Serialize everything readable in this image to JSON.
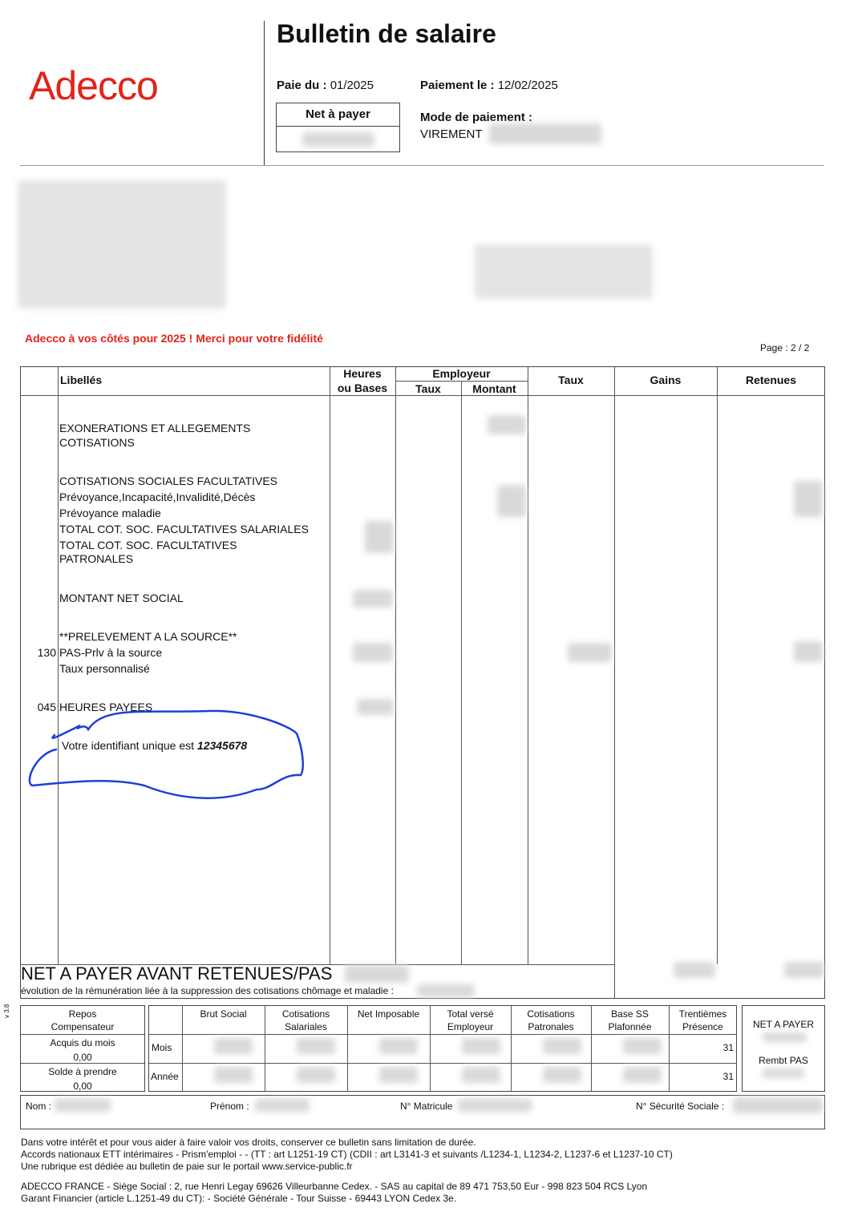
{
  "header": {
    "logo": "Adecco",
    "title": "Bulletin de salaire",
    "paie_du_label": "Paie du :",
    "paie_du": "01/2025",
    "paiement_le_label": "Paiement le :",
    "paiement_le": "12/02/2025",
    "net_a_payer_label": "Net à payer",
    "mode_paiement_label": "Mode de paiement :",
    "mode_paiement": "VIREMENT"
  },
  "promo": "Adecco à vos côtés pour 2025 ! Merci pour votre fidélité",
  "page": "Page : 2 / 2",
  "table": {
    "headers": {
      "libelles": "Libellés",
      "heures": "Heures",
      "bases": "ou Bases",
      "employeur": "Employeur",
      "taux_emp": "Taux",
      "montant": "Montant",
      "taux": "Taux",
      "gains": "Gains",
      "retenues": "Retenues"
    },
    "rows": [
      {
        "code": "",
        "label": "EXONERATIONS ET ALLEGEMENTS"
      },
      {
        "code": "",
        "label": "COTISATIONS"
      },
      {
        "code": "",
        "label": "COTISATIONS SOCIALES FACULTATIVES"
      },
      {
        "code": "",
        "label": "Prévoyance,Incapacité,Invalidité,Décès"
      },
      {
        "code": "",
        "label": "Prévoyance maladie"
      },
      {
        "code": "",
        "label": "TOTAL COT. SOC. FACULTATIVES SALARIALES"
      },
      {
        "code": "",
        "label": "TOTAL COT. SOC. FACULTATIVES"
      },
      {
        "code": "",
        "label": "PATRONALES"
      },
      {
        "code": "",
        "label": "MONTANT NET SOCIAL"
      },
      {
        "code": "",
        "label": "**PRELEVEMENT A LA SOURCE**"
      },
      {
        "code": "130",
        "label": "PAS-Prlv à la source"
      },
      {
        "code": "",
        "label": "Taux personnalisé"
      },
      {
        "code": "045",
        "label": "HEURES PAYEES"
      }
    ],
    "identifiant_label": "Votre identifiant unique est",
    "identifiant": "12345678",
    "net_avant": "NET A PAYER AVANT RETENUES/PAS",
    "evolution": "évolution de la rémunération liée à la suppression des cotisations chômage et maladie :"
  },
  "summary": {
    "repos_header": "Repos Compensateur",
    "acquis_label": "Acquis du mois",
    "acquis": "0,00",
    "solde_label": "Solde à prendre",
    "solde": "0,00",
    "columns": [
      "Brut Social",
      "Cotisations Salariales",
      "Net Imposable",
      "Total versé Employeur",
      "Cotisations Patronales",
      "Base SS Plafonnée",
      "Trentièmes Présence"
    ],
    "mois_label": "Mois",
    "annee_label": "Année",
    "trentiemes_mois": "31",
    "trentiemes_annee": "31",
    "net_a_payer": "NET A PAYER",
    "rembt_pas": "Rembt PAS",
    "version": "v 3.8"
  },
  "identity": {
    "nom": "Nom :",
    "prenom": "Prénom :",
    "matricule": "N° Matricule",
    "secu": "N° Sécurité Sociale :"
  },
  "footer": [
    "Dans votre intérêt et pour vous aider à faire valoir vos droits, conserver ce bulletin sans limitation de durée.",
    "Accords nationaux ETT intérimaires - Prism'emploi - - (TT : art L1251-19 CT) (CDII : art L3141-3 et suivants /L1234-1, L1234-2, L1237-6 et L1237-10 CT)",
    "Une rubrique est dédiée au bulletin de paie sur le portail www.service-public.fr",
    "ADECCO FRANCE - Siège Social : 2, rue Henri Legay 69626 Villeurbanne Cedex. - SAS au capital de 89 471 753,50 Eur - 998 823 504 RCS Lyon",
    "Garant Financier (article L.1251-49 du CT): - Société Générale - Tour Suisse - 69443 LYON Cedex 3e."
  ],
  "colors": {
    "brand": "#e2231a",
    "annotation": "#1f3fd6"
  }
}
